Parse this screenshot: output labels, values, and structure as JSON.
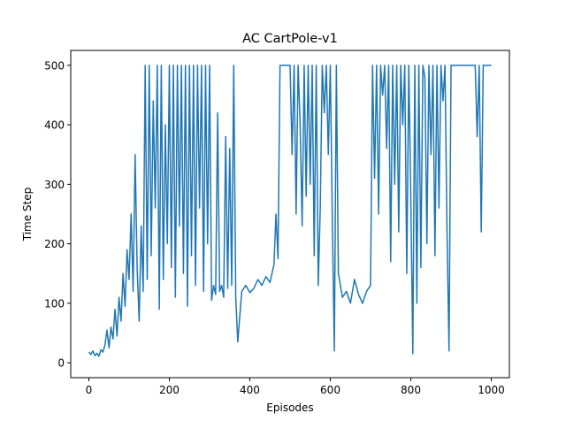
{
  "chart_data": {
    "type": "line",
    "title": "AC CartPole-v1",
    "xlabel": "Episodes",
    "ylabel": "Time Step",
    "xlim": [
      -45,
      1045
    ],
    "ylim": [
      -25,
      525
    ],
    "xticks": [
      0,
      200,
      400,
      600,
      800,
      1000
    ],
    "yticks": [
      0,
      100,
      200,
      300,
      400,
      500
    ],
    "xtick_labels": [
      "0",
      "200",
      "400",
      "600",
      "800",
      "1000"
    ],
    "ytick_labels": [
      "0",
      "100",
      "200",
      "300",
      "400",
      "500"
    ],
    "grid": false,
    "legend": "none",
    "series": [
      {
        "color": "#1f77b4",
        "x": [
          0,
          5,
          10,
          15,
          20,
          25,
          30,
          35,
          40,
          45,
          50,
          55,
          60,
          65,
          70,
          75,
          80,
          85,
          90,
          95,
          100,
          105,
          110,
          115,
          120,
          125,
          130,
          135,
          140,
          145,
          150,
          155,
          160,
          165,
          170,
          175,
          180,
          185,
          190,
          195,
          200,
          205,
          210,
          215,
          220,
          225,
          230,
          235,
          240,
          245,
          250,
          255,
          260,
          265,
          270,
          275,
          280,
          285,
          290,
          295,
          300,
          305,
          310,
          315,
          320,
          325,
          330,
          335,
          340,
          345,
          350,
          355,
          360,
          365,
          370,
          380,
          390,
          400,
          410,
          420,
          430,
          440,
          450,
          460,
          465,
          470,
          475,
          480,
          490,
          500,
          505,
          510,
          515,
          520,
          525,
          530,
          535,
          540,
          545,
          550,
          555,
          560,
          565,
          570,
          575,
          580,
          585,
          590,
          595,
          600,
          605,
          610,
          615,
          620,
          630,
          640,
          650,
          660,
          670,
          680,
          690,
          700,
          705,
          710,
          715,
          720,
          725,
          730,
          735,
          740,
          745,
          750,
          755,
          760,
          765,
          770,
          775,
          780,
          785,
          790,
          795,
          800,
          805,
          810,
          815,
          820,
          825,
          830,
          835,
          840,
          845,
          850,
          855,
          860,
          865,
          870,
          875,
          880,
          885,
          890,
          895,
          900,
          905,
          910,
          915,
          920,
          925,
          930,
          935,
          940,
          945,
          950,
          955,
          960,
          965,
          970,
          975,
          980,
          990,
          1000
        ],
        "y": [
          18,
          14,
          20,
          12,
          16,
          11,
          22,
          18,
          30,
          55,
          25,
          60,
          40,
          90,
          45,
          110,
          70,
          150,
          95,
          190,
          140,
          250,
          120,
          350,
          160,
          70,
          230,
          120,
          500,
          140,
          500,
          180,
          440,
          260,
          500,
          90,
          500,
          140,
          400,
          200,
          500,
          160,
          500,
          110,
          500,
          230,
          500,
          150,
          500,
          95,
          500,
          180,
          500,
          130,
          500,
          260,
          500,
          120,
          500,
          200,
          500,
          105,
          130,
          115,
          420,
          120,
          130,
          110,
          380,
          125,
          360,
          130,
          500,
          110,
          35,
          120,
          130,
          118,
          125,
          140,
          130,
          145,
          135,
          165,
          250,
          175,
          500,
          500,
          500,
          500,
          350,
          500,
          250,
          500,
          400,
          230,
          500,
          280,
          500,
          300,
          500,
          180,
          500,
          130,
          260,
          500,
          420,
          500,
          350,
          500,
          240,
          20,
          500,
          150,
          110,
          120,
          100,
          140,
          115,
          100,
          120,
          130,
          500,
          310,
          500,
          250,
          500,
          450,
          500,
          360,
          500,
          170,
          500,
          300,
          500,
          220,
          500,
          400,
          500,
          150,
          500,
          280,
          15,
          500,
          100,
          500,
          160,
          500,
          480,
          200,
          500,
          350,
          500,
          180,
          500,
          260,
          500,
          440,
          500,
          220,
          20,
          500,
          500,
          500,
          500,
          500,
          500,
          500,
          500,
          500,
          500,
          500,
          500,
          500,
          380,
          500,
          220,
          500,
          500,
          500
        ]
      }
    ]
  }
}
